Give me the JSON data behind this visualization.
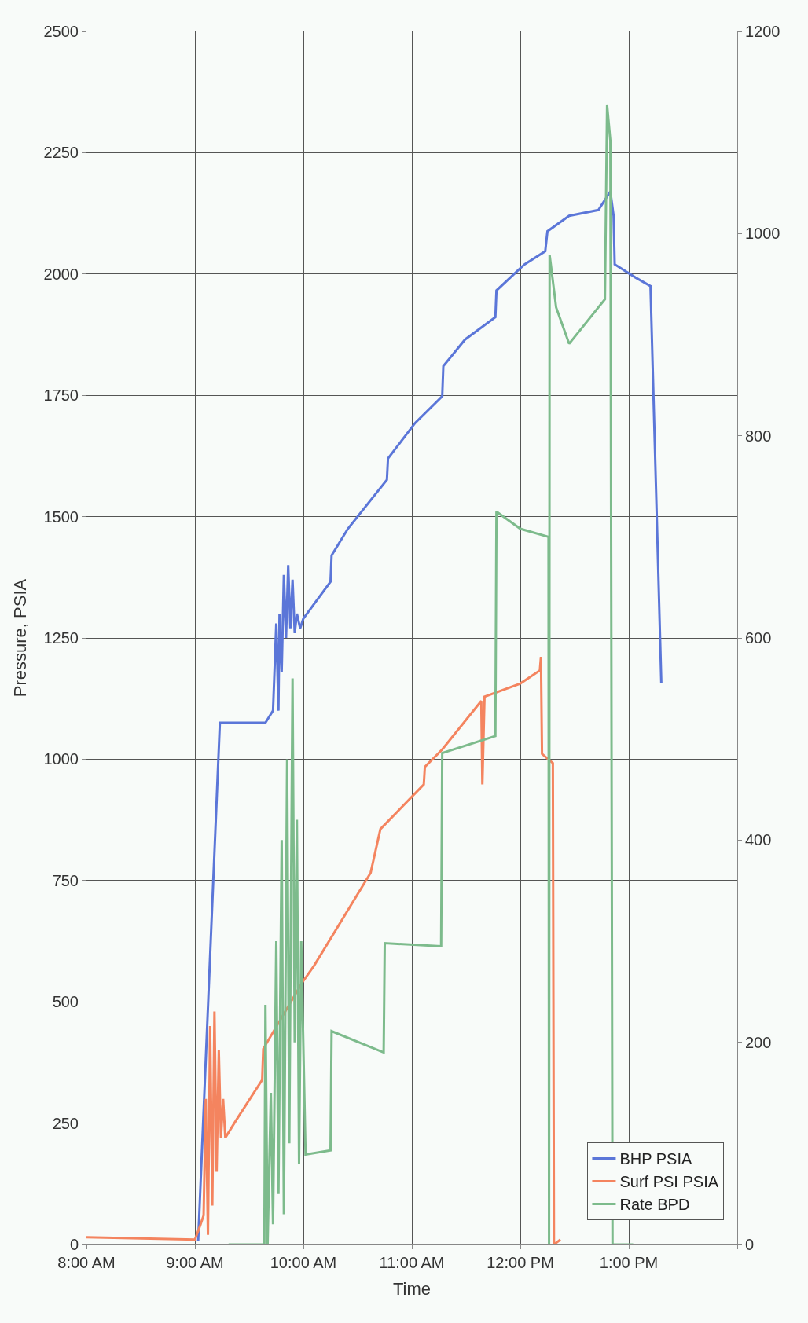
{
  "chart_data": {
    "type": "line",
    "xlabel": "Time",
    "ylabel": "Pressure, PSIA",
    "xlim": [
      8,
      14
    ],
    "xticks": [
      {
        "value": 8,
        "label": "8:00 AM"
      },
      {
        "value": 9,
        "label": "9:00 AM"
      },
      {
        "value": 10,
        "label": "10:00 AM"
      },
      {
        "value": 11,
        "label": "11:00 AM"
      },
      {
        "value": 12,
        "label": "12:00 PM"
      },
      {
        "value": 13,
        "label": "1:00 PM"
      },
      {
        "value": 14,
        "label": null
      }
    ],
    "ylim": [
      0,
      2500
    ],
    "yticks": [
      0,
      250,
      500,
      750,
      1000,
      1250,
      1500,
      1750,
      2000,
      2250,
      2500
    ],
    "y2lim": [
      0,
      1200
    ],
    "y2ticks": [
      0,
      200,
      400,
      600,
      800,
      1000,
      1200
    ],
    "grid": true,
    "legend": "bottom right",
    "marker": "none",
    "line_style": "solid",
    "series": [
      {
        "name": "BHP PSIA",
        "color": "#5b76d8",
        "x": [
          9.03,
          9.23,
          9.65,
          9.72,
          9.75,
          9.77,
          9.78,
          9.8,
          9.82,
          9.84,
          9.86,
          9.88,
          9.9,
          9.92,
          9.94,
          9.97,
          10.0,
          10.25,
          10.26,
          10.41,
          10.77,
          10.78,
          11.03,
          11.28,
          11.29,
          11.49,
          11.77,
          11.78,
          12.0,
          12.04,
          12.23,
          12.25,
          12.45,
          12.72,
          12.83,
          12.86,
          12.87,
          13.06,
          13.2,
          13.3
        ],
        "values": [
          8,
          1075,
          1075,
          1100,
          1280,
          1100,
          1300,
          1180,
          1380,
          1250,
          1400,
          1270,
          1370,
          1260,
          1300,
          1270,
          1290,
          1366,
          1420,
          1475,
          1576,
          1620,
          1693,
          1748,
          1810,
          1865,
          1911,
          1966,
          2012,
          2020,
          2047,
          2088,
          2120,
          2132,
          2170,
          2120,
          2020,
          1993,
          1975,
          1156
        ]
      },
      {
        "name": "Surf PSI PSIA",
        "color": "#f4845f",
        "x": [
          8.0,
          9.0,
          9.05,
          9.08,
          9.1,
          9.12,
          9.14,
          9.16,
          9.18,
          9.2,
          9.22,
          9.24,
          9.26,
          9.28,
          9.38,
          9.62,
          9.63,
          9.99,
          10.1,
          10.62,
          10.71,
          11.11,
          11.12,
          11.28,
          11.64,
          11.65,
          11.67,
          12.0,
          12.18,
          12.19,
          12.2,
          12.3,
          12.31,
          12.37
        ],
        "values": [
          15,
          10,
          40,
          60,
          300,
          20,
          450,
          80,
          480,
          150,
          400,
          220,
          300,
          220,
          256,
          339,
          403,
          540,
          575,
          766,
          856,
          948,
          984,
          1020,
          1120,
          948,
          1129,
          1156,
          1183,
          1211,
          1011,
          992,
          0,
          10
        ]
      },
      {
        "name": "Rate BPD",
        "color": "#7dbb8c",
        "axis": "y2",
        "x": [
          9.31,
          9.64,
          9.65,
          9.67,
          9.7,
          9.72,
          9.75,
          9.77,
          9.8,
          9.82,
          9.85,
          9.87,
          9.9,
          9.92,
          9.94,
          9.96,
          9.98,
          10.02,
          10.25,
          10.26,
          10.74,
          10.75,
          11.27,
          11.28,
          11.77,
          11.78,
          12.0,
          12.26,
          12.265,
          12.27,
          12.33,
          12.45,
          12.78,
          12.8,
          12.83,
          12.85,
          13.04
        ],
        "values": [
          0,
          0,
          237,
          0,
          150,
          20,
          300,
          50,
          400,
          30,
          480,
          100,
          560,
          200,
          420,
          80,
          300,
          89,
          93,
          211,
          190,
          298,
          295,
          486,
          503,
          725,
          708,
          700,
          0,
          979,
          927,
          891,
          935,
          1127,
          1092,
          0,
          0
        ]
      }
    ]
  }
}
